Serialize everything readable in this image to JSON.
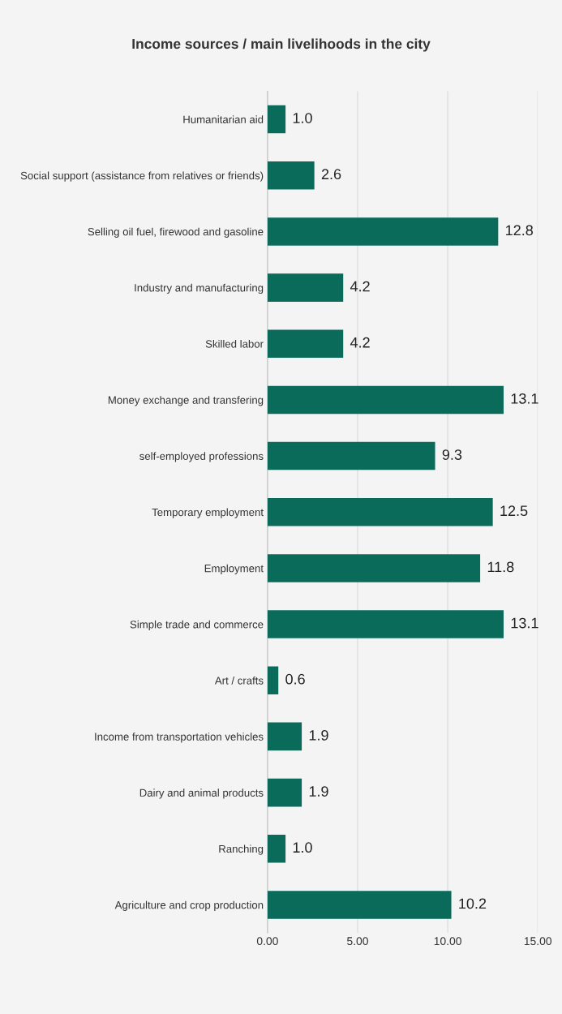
{
  "chart_data": {
    "type": "bar",
    "orientation": "horizontal",
    "title": "Income sources / main livelihoods in the city",
    "categories": [
      "Humanitarian aid",
      "Social support (assistance from relatives or friends)",
      "Selling oil fuel, firewood and gasoline",
      "Industry and manufacturing",
      "Skilled labor",
      "Money exchange and transfering",
      "self-employed professions",
      "Temporary employment",
      "Employment",
      "Simple trade and commerce",
      "Art / crafts",
      "Income from transportation vehicles",
      "Dairy and animal products",
      "Ranching",
      "Agriculture and crop production"
    ],
    "values": [
      1.0,
      2.6,
      12.8,
      4.2,
      4.2,
      13.1,
      9.3,
      12.5,
      11.8,
      13.1,
      0.6,
      1.9,
      1.9,
      1.0,
      10.2
    ],
    "value_labels": [
      "1.0",
      "2.6",
      "12.8",
      "4.2",
      "4.2",
      "13.1",
      "9.3",
      "12.5",
      "11.8",
      "13.1",
      "0.6",
      "1.9",
      "1.9",
      "1.0",
      "10.2"
    ],
    "color": "#0b6b5a",
    "xlim": [
      0,
      15
    ],
    "xticks": [
      {
        "value": 0,
        "label": "0.00"
      },
      {
        "value": 5,
        "label": "5.00"
      },
      {
        "value": 10,
        "label": "10.00"
      },
      {
        "value": 15,
        "label": "15.00"
      }
    ],
    "grid": "x",
    "legend": false
  }
}
